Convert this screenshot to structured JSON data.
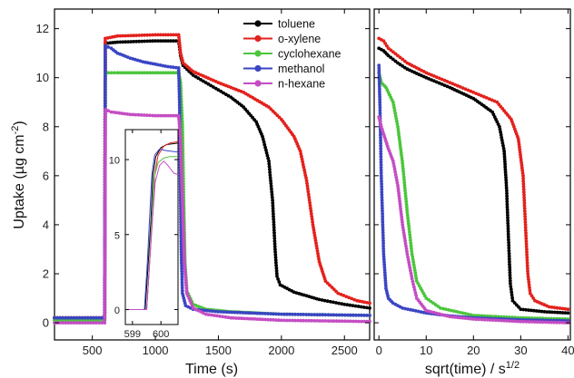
{
  "colors": {
    "toluene": "#000000",
    "o-xylene": "#e3211c",
    "cyclohexane": "#4cc53c",
    "methanol": "#3a45c4",
    "n-hexane": "#c44dc4"
  },
  "chart_data": [
    {
      "id": "main",
      "type": "line",
      "xlabel": "Time (s)",
      "ylabel": "Uptake (µg cm",
      "ylabel_sup": "-2",
      "ylabel_end": ")",
      "xlim": [
        200,
        2700
      ],
      "ylim": [
        -0.7,
        12.8
      ],
      "xticks": [
        500,
        1000,
        1500,
        2000,
        2500
      ],
      "yticks": [
        0,
        2,
        4,
        6,
        8,
        10,
        12
      ],
      "legend_position": "top-right",
      "series": [
        {
          "name": "toluene",
          "color": "toluene",
          "points": [
            [
              200,
              0.2
            ],
            [
              598,
              0.2
            ],
            [
              603,
              11.4
            ],
            [
              700,
              11.45
            ],
            [
              1000,
              11.5
            ],
            [
              1185,
              11.5
            ],
            [
              1200,
              10.9
            ],
            [
              1220,
              10.5
            ],
            [
              1300,
              10.1
            ],
            [
              1400,
              9.8
            ],
            [
              1500,
              9.5
            ],
            [
              1600,
              9.2
            ],
            [
              1700,
              8.8
            ],
            [
              1800,
              8.2
            ],
            [
              1850,
              7.6
            ],
            [
              1900,
              6.6
            ],
            [
              1930,
              5.0
            ],
            [
              1950,
              3.0
            ],
            [
              1965,
              1.9
            ],
            [
              1990,
              1.55
            ],
            [
              2100,
              1.25
            ],
            [
              2300,
              0.95
            ],
            [
              2500,
              0.75
            ],
            [
              2700,
              0.6
            ]
          ]
        },
        {
          "name": "o-xylene",
          "color": "o-xylene",
          "points": [
            [
              200,
              0.2
            ],
            [
              598,
              0.2
            ],
            [
              603,
              11.6
            ],
            [
              700,
              11.7
            ],
            [
              1000,
              11.75
            ],
            [
              1185,
              11.75
            ],
            [
              1200,
              11.0
            ],
            [
              1220,
              10.6
            ],
            [
              1300,
              10.25
            ],
            [
              1500,
              9.8
            ],
            [
              1700,
              9.4
            ],
            [
              1900,
              8.8
            ],
            [
              2000,
              8.3
            ],
            [
              2100,
              7.6
            ],
            [
              2150,
              7.0
            ],
            [
              2200,
              5.8
            ],
            [
              2250,
              4.0
            ],
            [
              2300,
              2.5
            ],
            [
              2350,
              1.7
            ],
            [
              2450,
              1.2
            ],
            [
              2600,
              0.9
            ],
            [
              2700,
              0.8
            ]
          ]
        },
        {
          "name": "cyclohexane",
          "color": "cyclohexane",
          "points": [
            [
              200,
              0.1
            ],
            [
              598,
              0.1
            ],
            [
              603,
              10.2
            ],
            [
              700,
              10.2
            ],
            [
              1000,
              10.2
            ],
            [
              1185,
              10.2
            ],
            [
              1200,
              9.8
            ],
            [
              1215,
              8.0
            ],
            [
              1225,
              5.0
            ],
            [
              1235,
              2.5
            ],
            [
              1250,
              1.3
            ],
            [
              1300,
              0.75
            ],
            [
              1400,
              0.55
            ],
            [
              1600,
              0.45
            ],
            [
              2000,
              0.35
            ],
            [
              2700,
              0.3
            ]
          ]
        },
        {
          "name": "methanol",
          "color": "methanol",
          "points": [
            [
              200,
              0.2
            ],
            [
              598,
              0.2
            ],
            [
              603,
              11.3
            ],
            [
              650,
              11.2
            ],
            [
              700,
              11.0
            ],
            [
              800,
              10.8
            ],
            [
              900,
              10.65
            ],
            [
              1000,
              10.55
            ],
            [
              1100,
              10.45
            ],
            [
              1185,
              10.4
            ],
            [
              1192,
              9.0
            ],
            [
              1198,
              6.0
            ],
            [
              1205,
              3.0
            ],
            [
              1215,
              1.2
            ],
            [
              1240,
              0.7
            ],
            [
              1300,
              0.55
            ],
            [
              1500,
              0.45
            ],
            [
              2000,
              0.35
            ],
            [
              2700,
              0.3
            ]
          ]
        },
        {
          "name": "n-hexane",
          "color": "n-hexane",
          "points": [
            [
              200,
              0.0
            ],
            [
              598,
              0.0
            ],
            [
              603,
              8.7
            ],
            [
              650,
              8.6
            ],
            [
              800,
              8.5
            ],
            [
              1000,
              8.45
            ],
            [
              1185,
              8.45
            ],
            [
              1200,
              7.5
            ],
            [
              1215,
              5.0
            ],
            [
              1230,
              2.5
            ],
            [
              1250,
              1.2
            ],
            [
              1300,
              0.6
            ],
            [
              1400,
              0.35
            ],
            [
              1600,
              0.2
            ],
            [
              2000,
              0.1
            ],
            [
              2700,
              0.05
            ]
          ]
        }
      ]
    },
    {
      "id": "inset",
      "type": "line",
      "xlim": [
        598.75,
        600.6
      ],
      "ylim": [
        -1.0,
        12.0
      ],
      "xticks": [
        599,
        600
      ],
      "yticks": [
        0,
        5,
        10
      ],
      "series": [
        {
          "name": "toluene",
          "color": "toluene",
          "points": [
            [
              598.75,
              0
            ],
            [
              599.45,
              0
            ],
            [
              599.55,
              3
            ],
            [
              599.65,
              6
            ],
            [
              599.72,
              9
            ],
            [
              599.82,
              10.2
            ],
            [
              600.0,
              10.8
            ],
            [
              600.2,
              11.0
            ],
            [
              600.6,
              11.1
            ]
          ]
        },
        {
          "name": "o-xylene",
          "color": "o-xylene",
          "points": [
            [
              598.75,
              0
            ],
            [
              599.5,
              0
            ],
            [
              599.6,
              3
            ],
            [
              599.7,
              6
            ],
            [
              599.78,
              9
            ],
            [
              599.9,
              10.3
            ],
            [
              600.1,
              10.9
            ],
            [
              600.3,
              11.1
            ],
            [
              600.6,
              11.2
            ]
          ]
        },
        {
          "name": "cyclohexane",
          "color": "cyclohexane",
          "points": [
            [
              598.75,
              0
            ],
            [
              599.5,
              0
            ],
            [
              599.6,
              3
            ],
            [
              599.68,
              6
            ],
            [
              599.76,
              8.8
            ],
            [
              599.9,
              9.8
            ],
            [
              600.1,
              10.1
            ],
            [
              600.3,
              10.2
            ],
            [
              600.6,
              10.2
            ]
          ]
        },
        {
          "name": "methanol",
          "color": "methanol",
          "points": [
            [
              598.75,
              0
            ],
            [
              599.42,
              0
            ],
            [
              599.52,
              3
            ],
            [
              599.6,
              6
            ],
            [
              599.68,
              9
            ],
            [
              599.78,
              10.3
            ],
            [
              599.95,
              10.7
            ],
            [
              600.2,
              10.6
            ],
            [
              600.6,
              10.5
            ]
          ]
        },
        {
          "name": "n-hexane",
          "color": "n-hexane",
          "points": [
            [
              598.75,
              0
            ],
            [
              599.5,
              0
            ],
            [
              599.6,
              3
            ],
            [
              599.7,
              6
            ],
            [
              599.8,
              8.5
            ],
            [
              599.95,
              9.6
            ],
            [
              600.1,
              9.9
            ],
            [
              600.25,
              9.6
            ],
            [
              600.45,
              9.1
            ],
            [
              600.6,
              9.0
            ]
          ]
        }
      ]
    },
    {
      "id": "right",
      "type": "line",
      "xlabel": "sqrt(time) / s",
      "xlabel_sup": "1/2",
      "xlim": [
        -1,
        40.5
      ],
      "ylim": [
        -0.7,
        12.8
      ],
      "xticks": [
        0,
        10,
        20,
        30,
        40
      ],
      "series": [
        {
          "name": "toluene",
          "color": "toluene",
          "points": [
            [
              0,
              11.2
            ],
            [
              1,
              11.1
            ],
            [
              2,
              10.9
            ],
            [
              4,
              10.6
            ],
            [
              6,
              10.35
            ],
            [
              10,
              10.0
            ],
            [
              15,
              9.6
            ],
            [
              20,
              9.15
            ],
            [
              24,
              8.6
            ],
            [
              25.5,
              8.0
            ],
            [
              26.5,
              7.0
            ],
            [
              27,
              5.5
            ],
            [
              27.4,
              3.5
            ],
            [
              27.8,
              1.6
            ],
            [
              28.3,
              0.9
            ],
            [
              30,
              0.55
            ],
            [
              35,
              0.45
            ],
            [
              40,
              0.4
            ]
          ]
        },
        {
          "name": "o-xylene",
          "color": "o-xylene",
          "points": [
            [
              0,
              11.6
            ],
            [
              1,
              11.5
            ],
            [
              2,
              11.2
            ],
            [
              4,
              10.9
            ],
            [
              6,
              10.6
            ],
            [
              10,
              10.2
            ],
            [
              15,
              9.8
            ],
            [
              20,
              9.4
            ],
            [
              25,
              9.0
            ],
            [
              28,
              8.3
            ],
            [
              29.5,
              7.5
            ],
            [
              30.5,
              6.0
            ],
            [
              31,
              4.0
            ],
            [
              31.5,
              2.0
            ],
            [
              32,
              1.2
            ],
            [
              33,
              0.9
            ],
            [
              36,
              0.65
            ],
            [
              40,
              0.55
            ]
          ]
        },
        {
          "name": "cyclohexane",
          "color": "cyclohexane",
          "points": [
            [
              0,
              10.2
            ],
            [
              0.5,
              9.8
            ],
            [
              1.5,
              9.6
            ],
            [
              3,
              9.0
            ],
            [
              4,
              8.0
            ],
            [
              5,
              6.5
            ],
            [
              6,
              4.5
            ],
            [
              7,
              2.8
            ],
            [
              8,
              1.7
            ],
            [
              10,
              1.0
            ],
            [
              13,
              0.6
            ],
            [
              20,
              0.3
            ],
            [
              30,
              0.2
            ],
            [
              40,
              0.15
            ]
          ]
        },
        {
          "name": "methanol",
          "color": "methanol",
          "points": [
            [
              0,
              10.5
            ],
            [
              0.2,
              9.0
            ],
            [
              0.5,
              6.0
            ],
            [
              1,
              2.8
            ],
            [
              1.5,
              1.4
            ],
            [
              2,
              1.0
            ],
            [
              3,
              0.8
            ],
            [
              5,
              0.6
            ],
            [
              10,
              0.4
            ],
            [
              15,
              0.28
            ],
            [
              20,
              0.2
            ],
            [
              30,
              0.12
            ],
            [
              40,
              0.08
            ]
          ]
        },
        {
          "name": "n-hexane",
          "color": "n-hexane",
          "points": [
            [
              0,
              8.4
            ],
            [
              0.5,
              8.0
            ],
            [
              1,
              7.7
            ],
            [
              2,
              7.1
            ],
            [
              3,
              6.6
            ],
            [
              4,
              5.6
            ],
            [
              5,
              4.0
            ],
            [
              6,
              2.8
            ],
            [
              7,
              1.8
            ],
            [
              8,
              1.0
            ],
            [
              10,
              0.5
            ],
            [
              15,
              0.25
            ],
            [
              20,
              0.15
            ],
            [
              30,
              0.05
            ],
            [
              40,
              0.0
            ]
          ]
        }
      ]
    }
  ]
}
